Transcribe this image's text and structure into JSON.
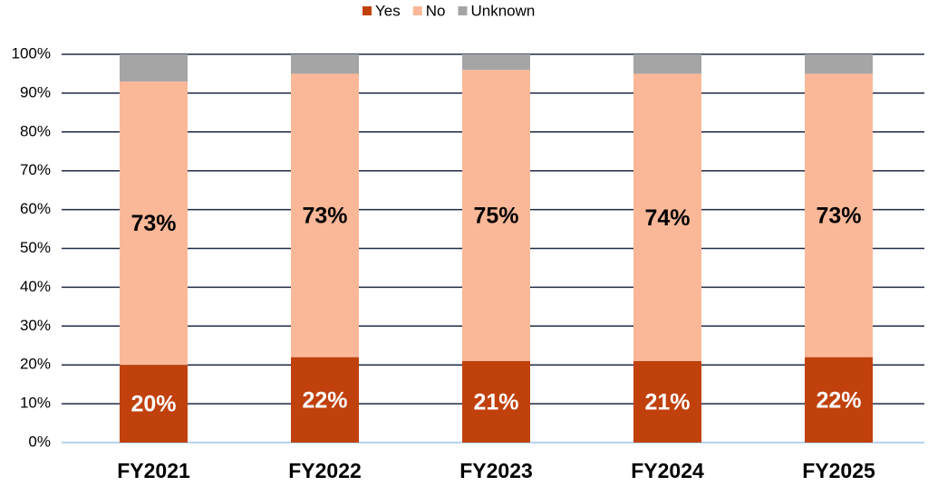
{
  "chart_data": {
    "type": "stacked_bar",
    "categories": [
      "FY2021",
      "FY2022",
      "FY2023",
      "FY2024",
      "FY2025"
    ],
    "series": [
      {
        "name": "Yes",
        "color": "#c0410c",
        "values": [
          20,
          22,
          21,
          21,
          22
        ],
        "value_labels": [
          "20%",
          "22%",
          "21%",
          "21%",
          "22%"
        ],
        "label_color": "#ffffff"
      },
      {
        "name": "No",
        "color": "#fbb898",
        "values": [
          73,
          73,
          75,
          74,
          73
        ],
        "value_labels": [
          "73%",
          "73%",
          "75%",
          "74%",
          "73%"
        ],
        "label_color": "#000000"
      },
      {
        "name": "Unknown",
        "color": "#a5a5a5",
        "values": [
          7,
          5,
          4,
          5,
          5
        ]
      }
    ],
    "ylim": [
      0,
      100
    ],
    "yticks": [
      {
        "value": 0,
        "label": "0%"
      },
      {
        "value": 10,
        "label": "10%"
      },
      {
        "value": 20,
        "label": "20%"
      },
      {
        "value": 30,
        "label": "30%"
      },
      {
        "value": 40,
        "label": "40%"
      },
      {
        "value": 50,
        "label": "50%"
      },
      {
        "value": 60,
        "label": "60%"
      },
      {
        "value": 70,
        "label": "70%"
      },
      {
        "value": 80,
        "label": "80%"
      },
      {
        "value": 90,
        "label": "90%"
      },
      {
        "value": 100,
        "label": "100%"
      }
    ],
    "grid": true,
    "legend": "top"
  }
}
